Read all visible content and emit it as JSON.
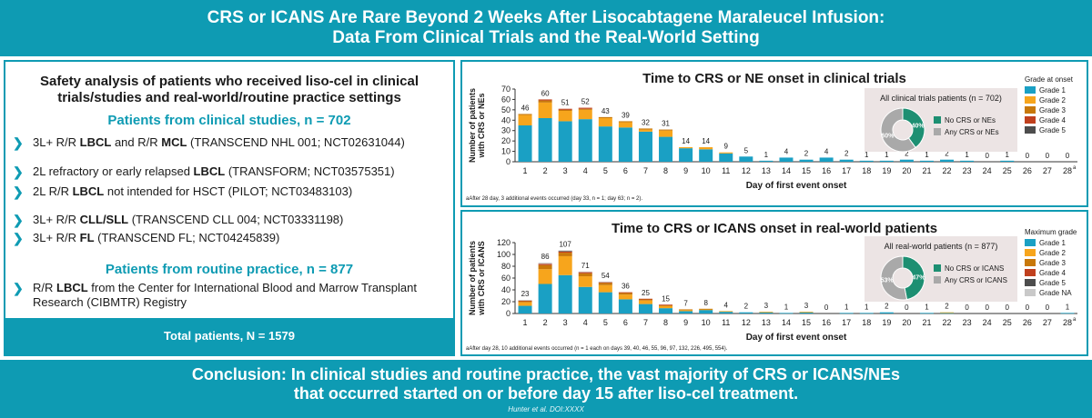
{
  "header": {
    "line1": "CRS or ICANS Are Rare Beyond 2 Weeks After Lisocabtagene Maraleucel Infusion:",
    "line2": "Data From Clinical Trials and the Real-World Setting"
  },
  "left": {
    "title_line1": "Safety analysis of patients who received liso-cel in clinical",
    "title_line2": "trials/studies and real-world/routine practice settings",
    "clinical_heading": "Patients from clinical studies, n = 702",
    "studies": [
      {
        "pre": "3L+ R/R ",
        "b1": "LBCL",
        "mid": " and R/R ",
        "b2": "MCL",
        "post": " (TRANSCEND NHL 001; NCT02631044)"
      },
      {
        "pre": "2L refractory or early relapsed ",
        "b1": "LBCL",
        "mid": "",
        "b2": "",
        "post": " (TRANSFORM; NCT03575351)"
      },
      {
        "pre": "2L R/R ",
        "b1": "LBCL",
        "mid": "",
        "b2": "",
        "post": " not intended for HSCT (PILOT; NCT03483103)"
      },
      {
        "pre": "3L+ R/R ",
        "b1": "CLL/SLL",
        "mid": "",
        "b2": "",
        "post": " (TRANSCEND CLL 004; NCT03331198)"
      },
      {
        "pre": "3L+ R/R ",
        "b1": "FL",
        "mid": "",
        "b2": "",
        "post": " (TRANSCEND FL; NCT04245839)"
      }
    ],
    "routine_heading": "Patients from routine practice, n = 877",
    "routine": {
      "pre": "R/R ",
      "b1": "LBCL",
      "line1_post": " from the Center for International Blood and Marrow Transplant",
      "line2": "Research (CIBMTR) Registry"
    },
    "total": "Total patients, N = 1579"
  },
  "footer": {
    "line1": "Conclusion: In clinical studies and routine practice, the vast majority of CRS or ICANS/NEs",
    "line2": "that occurred started on or before day 15 after liso-cel treatment.",
    "citation": "Hunter et al. DOI:XXXX"
  },
  "chart_data": [
    {
      "type": "bar",
      "title": "Time to CRS or NE onset in clinical trials",
      "xlabel": "Day of first event onset",
      "ylabel": "Number of patients with CRS or NEs",
      "ylim": [
        0,
        70
      ],
      "yticks": [
        0,
        10,
        20,
        30,
        40,
        50,
        60,
        70
      ],
      "categories": [
        "1",
        "2",
        "3",
        "4",
        "5",
        "6",
        "7",
        "8",
        "9",
        "10",
        "11",
        "12",
        "13",
        "14",
        "15",
        "16",
        "17",
        "18",
        "19",
        "20",
        "21",
        "22",
        "23",
        "24",
        "25",
        "26",
        "27",
        "28"
      ],
      "last_category_superscript": "a",
      "totals": [
        46,
        60,
        51,
        52,
        43,
        39,
        32,
        31,
        14,
        14,
        9,
        5,
        1,
        4,
        2,
        4,
        2,
        1,
        1,
        2,
        1,
        2,
        1,
        0,
        1,
        0,
        0,
        0
      ],
      "series": [
        {
          "name": "Grade 1",
          "color": "#1aa0c4",
          "values": [
            35,
            42,
            39,
            41,
            34,
            33,
            29,
            24,
            13,
            12,
            8,
            5,
            1,
            4,
            2,
            4,
            2,
            1,
            1,
            2,
            1,
            2,
            1,
            0,
            1,
            0,
            0,
            0
          ]
        },
        {
          "name": "Grade 2",
          "color": "#f7a51c",
          "values": [
            10,
            15,
            10,
            9,
            8,
            5,
            2,
            6,
            1,
            2,
            1,
            0,
            0,
            0,
            0,
            0,
            0,
            0,
            0,
            0,
            0,
            0,
            0,
            0,
            0,
            0,
            0,
            0
          ]
        },
        {
          "name": "Grade 3",
          "color": "#c8780a",
          "values": [
            1,
            2,
            1,
            1,
            1,
            1,
            1,
            1,
            0,
            0,
            0,
            0,
            0,
            0,
            0,
            0,
            0,
            0,
            0,
            0,
            0,
            0,
            0,
            0,
            0,
            0,
            0,
            0
          ]
        },
        {
          "name": "Grade 4",
          "color": "#c0401e",
          "values": [
            0,
            1,
            1,
            1,
            0,
            0,
            0,
            0,
            0,
            0,
            0,
            0,
            0,
            0,
            0,
            0,
            0,
            0,
            0,
            0,
            0,
            0,
            0,
            0,
            0,
            0,
            0,
            0
          ]
        },
        {
          "name": "Grade 5",
          "color": "#4d4d4d",
          "values": [
            0,
            0,
            0,
            0,
            0,
            0,
            0,
            0,
            0,
            0,
            0,
            0,
            0,
            0,
            0,
            0,
            0,
            0,
            0,
            0,
            0,
            0,
            0,
            0,
            0,
            0,
            0,
            0
          ]
        }
      ],
      "legend_title": "Grade at onset",
      "inset": {
        "title": "All clinical trials patients (n = 702)",
        "slices": [
          {
            "label": "No CRS or NEs",
            "percent": 40,
            "color": "#1d8f72"
          },
          {
            "label": "Any CRS or NEs",
            "percent": 60,
            "color": "#a9a9a9"
          }
        ]
      },
      "footnote": "aAfter 28 day, 3 additional events occurred (day 33, n = 1; day 63; n = 2)."
    },
    {
      "type": "bar",
      "title": "Time to CRS or ICANS onset in real-world patients",
      "xlabel": "Day of first event onset",
      "ylabel": "Number of patients with CRS or ICANS",
      "ylim": [
        0,
        120
      ],
      "yticks": [
        0,
        20,
        40,
        60,
        80,
        100,
        120
      ],
      "categories": [
        "1",
        "2",
        "3",
        "4",
        "5",
        "6",
        "7",
        "8",
        "9",
        "10",
        "11",
        "12",
        "13",
        "14",
        "15",
        "16",
        "17",
        "18",
        "19",
        "20",
        "21",
        "22",
        "23",
        "24",
        "25",
        "26",
        "27",
        "28"
      ],
      "last_category_superscript": "a",
      "totals": [
        23,
        86,
        107,
        71,
        54,
        36,
        25,
        15,
        7,
        8,
        4,
        2,
        3,
        1,
        3,
        0,
        1,
        1,
        2,
        0,
        1,
        2,
        0,
        0,
        0,
        0,
        0,
        1
      ],
      "series": [
        {
          "name": "Grade 1",
          "color": "#1aa0c4",
          "values": [
            13,
            50,
            65,
            45,
            36,
            24,
            16,
            9,
            4,
            6,
            3,
            2,
            2,
            1,
            2,
            0,
            1,
            1,
            2,
            0,
            1,
            1,
            0,
            0,
            0,
            0,
            0,
            1
          ]
        },
        {
          "name": "Grade 2",
          "color": "#f7a51c",
          "values": [
            6,
            25,
            32,
            18,
            12,
            8,
            6,
            4,
            2,
            1,
            1,
            0,
            1,
            0,
            1,
            0,
            0,
            0,
            0,
            0,
            0,
            1,
            0,
            0,
            0,
            0,
            0,
            0
          ]
        },
        {
          "name": "Grade 3",
          "color": "#c8780a",
          "values": [
            2,
            7,
            6,
            5,
            4,
            3,
            2,
            1,
            1,
            1,
            0,
            0,
            0,
            0,
            0,
            0,
            0,
            0,
            0,
            0,
            0,
            0,
            0,
            0,
            0,
            0,
            0,
            0
          ]
        },
        {
          "name": "Grade 4",
          "color": "#c0401e",
          "values": [
            1,
            2,
            2,
            2,
            1,
            1,
            1,
            1,
            0,
            0,
            0,
            0,
            0,
            0,
            0,
            0,
            0,
            0,
            0,
            0,
            0,
            0,
            0,
            0,
            0,
            0,
            0,
            0
          ]
        },
        {
          "name": "Grade 5",
          "color": "#4d4d4d",
          "values": [
            0,
            0,
            1,
            0,
            0,
            0,
            0,
            0,
            0,
            0,
            0,
            0,
            0,
            0,
            0,
            0,
            0,
            0,
            0,
            0,
            0,
            0,
            0,
            0,
            0,
            0,
            0,
            0
          ]
        },
        {
          "name": "Grade NA",
          "color": "#c9c9c9",
          "values": [
            1,
            2,
            1,
            1,
            1,
            0,
            0,
            0,
            0,
            0,
            0,
            0,
            0,
            0,
            0,
            0,
            0,
            0,
            0,
            0,
            0,
            0,
            0,
            0,
            0,
            0,
            0,
            0
          ]
        }
      ],
      "legend_title": "Maximum grade",
      "inset": {
        "title": "All real-world patients (n = 877)",
        "slices": [
          {
            "label": "No CRS or ICANS",
            "percent": 47,
            "color": "#1d8f72"
          },
          {
            "label": "Any CRS or ICANS",
            "percent": 53,
            "color": "#a9a9a9"
          }
        ]
      },
      "footnote": "aAfter day 28, 10 additional events occurred (n = 1 each on days 39, 40, 46, 55, 96, 97, 132, 226, 495, 554)."
    }
  ]
}
